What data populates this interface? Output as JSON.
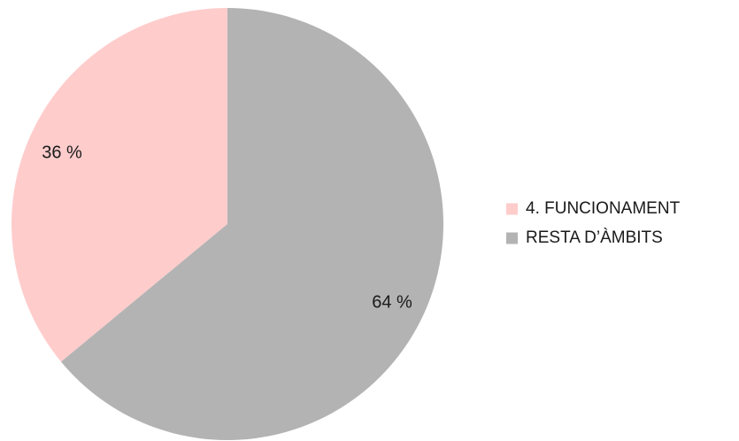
{
  "chart_data": {
    "type": "pie",
    "title": "",
    "slices": [
      {
        "name": "4. FUNCIONAMENT",
        "value": 36,
        "label": "36 %",
        "color": "#ffcccc"
      },
      {
        "name": "RESTA D’ÀMBITS",
        "value": 64,
        "label": "64 %",
        "color": "#b3b3b3"
      }
    ],
    "start_angle_deg": 0,
    "direction": "counterclockwise",
    "legend_position": "right"
  }
}
